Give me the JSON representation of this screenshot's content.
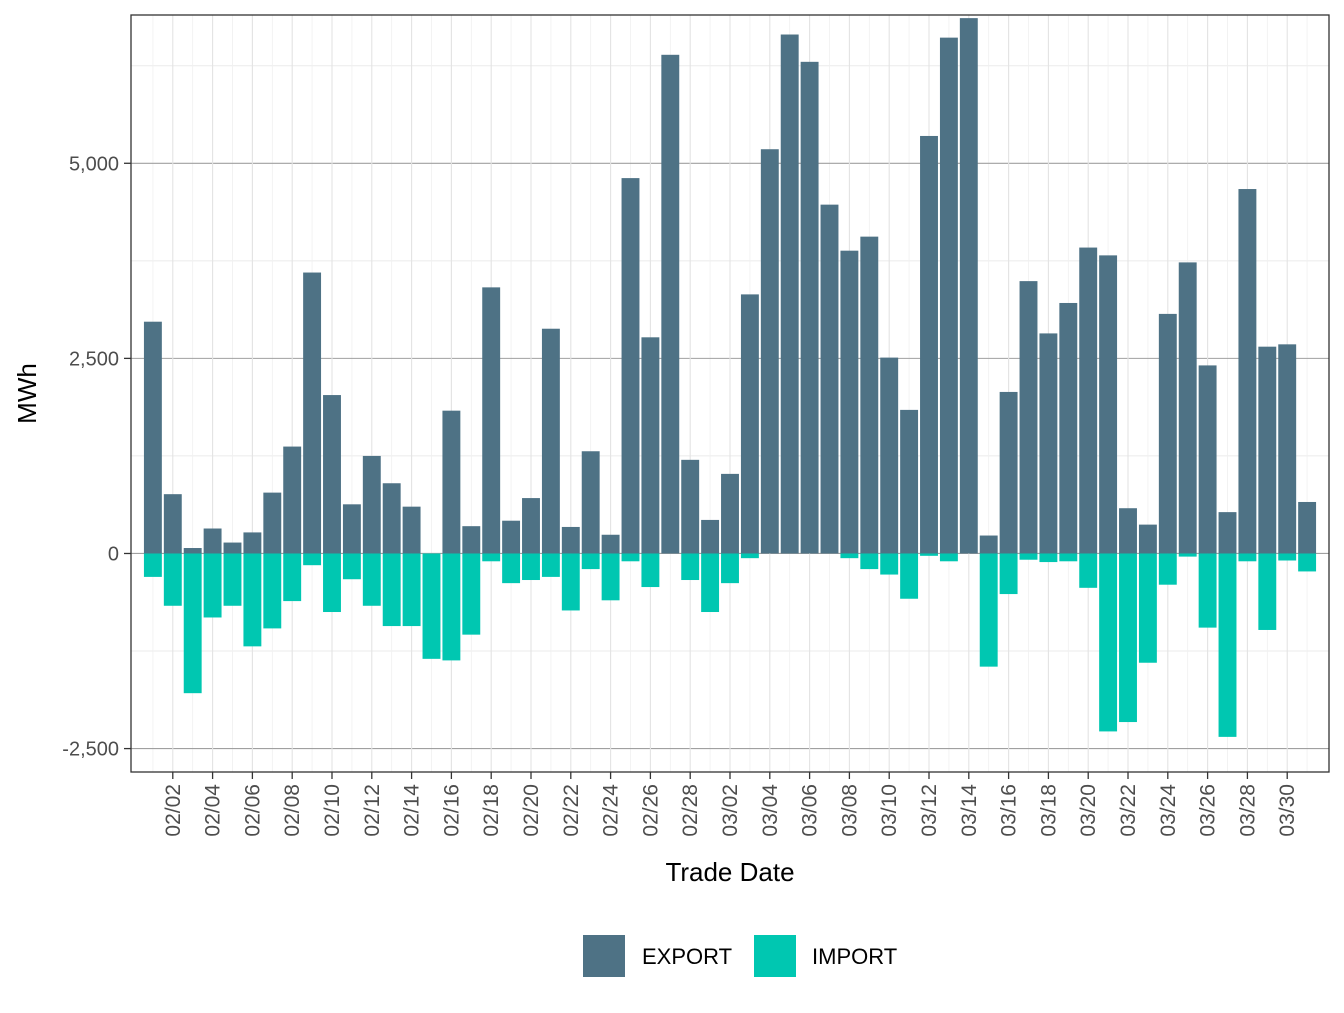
{
  "chart_data": {
    "type": "bar",
    "stacked": true,
    "title": "",
    "xlabel": "Trade Date",
    "ylabel": "MWh",
    "ylim": [
      -2800,
      6900
    ],
    "y_ticks": [
      -2500,
      0,
      2500,
      5000
    ],
    "y_tick_labels": [
      "-2,500",
      "0",
      "2,500",
      "5,000"
    ],
    "grid": true,
    "legend_position": "bottom",
    "x_tick_labels": [
      "02/02",
      "02/04",
      "02/06",
      "02/08",
      "02/10",
      "02/12",
      "02/14",
      "02/16",
      "02/18",
      "02/20",
      "02/22",
      "02/24",
      "02/26",
      "02/28",
      "03/02",
      "03/04",
      "03/06",
      "03/08",
      "03/10",
      "03/12",
      "03/14",
      "03/16",
      "03/18",
      "03/20",
      "03/22",
      "03/24",
      "03/26",
      "03/28",
      "03/30"
    ],
    "dates": [
      "02/01",
      "02/02",
      "02/03",
      "02/04",
      "02/05",
      "02/06",
      "02/07",
      "02/08",
      "02/09",
      "02/10",
      "02/11",
      "02/12",
      "02/13",
      "02/14",
      "02/15",
      "02/16",
      "02/17",
      "02/18",
      "02/19",
      "02/20",
      "02/21",
      "02/22",
      "02/23",
      "02/24",
      "02/25",
      "02/26",
      "02/27",
      "02/28",
      "03/01",
      "03/02",
      "03/03",
      "03/04",
      "03/05",
      "03/06",
      "03/07",
      "03/08",
      "03/09",
      "03/10",
      "03/11",
      "03/12",
      "03/13",
      "03/14",
      "03/15",
      "03/16",
      "03/17",
      "03/18",
      "03/19",
      "03/20",
      "03/21",
      "03/22",
      "03/23",
      "03/24",
      "03/25",
      "03/26",
      "03/27",
      "03/28",
      "03/29",
      "03/30",
      "03/31"
    ],
    "series": [
      {
        "name": "EXPORT",
        "color": "#4e7285",
        "values": [
          2970,
          760,
          70,
          320,
          140,
          270,
          780,
          1370,
          3600,
          2030,
          630,
          1250,
          900,
          600,
          0,
          1830,
          350,
          3410,
          420,
          710,
          2880,
          340,
          1310,
          240,
          4810,
          2770,
          6390,
          1200,
          430,
          1020,
          3320,
          5180,
          6650,
          6300,
          4470,
          3880,
          4060,
          2510,
          1840,
          5350,
          6610,
          6860,
          230,
          2070,
          3490,
          2820,
          3210,
          3920,
          3820,
          580,
          370,
          3070,
          3730,
          2410,
          530,
          4670,
          2650,
          2680,
          660
        ]
      },
      {
        "name": "IMPORT",
        "color": "#00c7b1",
        "values": [
          -300,
          -670,
          -1790,
          -820,
          -670,
          -1190,
          -960,
          -610,
          -150,
          -750,
          -330,
          -670,
          -930,
          -930,
          -1350,
          -1370,
          -1040,
          -100,
          -380,
          -340,
          -300,
          -730,
          -200,
          -600,
          -100,
          -430,
          0,
          -340,
          -750,
          -380,
          -60,
          0,
          0,
          0,
          0,
          -60,
          -200,
          -270,
          -580,
          -30,
          -100,
          0,
          -1450,
          -520,
          -80,
          -110,
          -100,
          -440,
          -2280,
          -2160,
          -1400,
          -400,
          -40,
          -950,
          -2350,
          -100,
          -980,
          -90,
          -230
        ]
      }
    ]
  }
}
